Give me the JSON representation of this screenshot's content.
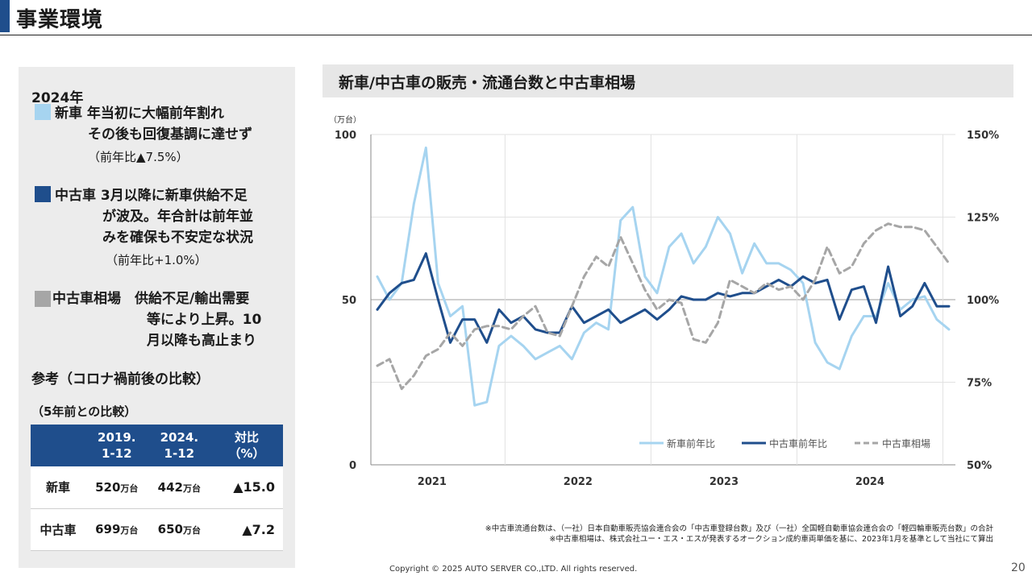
{
  "page": {
    "title": "事業環境",
    "copyright": "Copyright © 2025 AUTO SERVER CO.,LTD.  All rights reserved.",
    "page_number": "20"
  },
  "left_panel": {
    "year": "2024年",
    "new_car": {
      "color": "#a6d4f0",
      "lines": [
        "新車 年当初に大幅前年割れ",
        "その後も回復基調に達せず"
      ],
      "note": "（前年比▲7.5%）"
    },
    "used_car": {
      "color": "#1f4e8c",
      "lines": [
        "中古車 3月以降に新車供給不足",
        "が波及。年合計は前年並",
        "みを確保も不安定な状況"
      ],
      "note": "（前年比+1.0%）"
    },
    "market": {
      "color": "#a6a6a6",
      "lines": [
        "中古車相場　供給不足/輸出需要",
        "等により上昇。10",
        "月以降も高止まり"
      ]
    },
    "reference_title": "参考（コロナ禍前後の比較）",
    "reference_sub": "（5年前との比較）",
    "table": {
      "headers": [
        "",
        "2019.\n1-12",
        "2024.\n1-12",
        "対比\n（%）"
      ],
      "rows": [
        {
          "label": "新車",
          "v2019": "520",
          "v2024": "442",
          "unit": "万台",
          "ratio": "▲15.0"
        },
        {
          "label": "中古車",
          "v2019": "699",
          "v2024": "650",
          "unit": "万台",
          "ratio": "▲7.2"
        }
      ]
    }
  },
  "chart": {
    "header": "新車/中古車の販売・流通台数と中古車相場",
    "notes": [
      "※中古車流通台数は、（一社）日本自動車販売協会連合会の「中古車登録台数」及び（一社）全国軽自動車協会連合会の「軽四輪車販売台数」の合計",
      "※中古車相場は、株式会社ユー・エス・エスが発表するオークション成約車両単価を基に、2023年1月を基準として当社にて算出"
    ]
  },
  "chart_data": {
    "type": "line",
    "left_axis": {
      "unit": "（万台）",
      "ticks": [
        "100",
        "50",
        "0"
      ],
      "range": [
        0,
        100
      ]
    },
    "right_axis": {
      "ticks": [
        "150%",
        "125%",
        "100%",
        "75%",
        "50%"
      ],
      "range": [
        50,
        150
      ]
    },
    "x_labels": [
      "2021",
      "2022",
      "2023",
      "2024"
    ],
    "legend_position": "bottom-right",
    "grid": true,
    "series": [
      {
        "name": "新車前年比",
        "color": "#a6d4f0",
        "dash": "none",
        "axis": "left",
        "values": [
          57,
          50,
          55,
          79,
          96,
          55,
          45,
          48,
          18,
          19,
          36,
          39,
          36,
          32,
          34,
          36,
          32,
          40,
          43,
          41,
          74,
          78,
          57,
          52,
          66,
          70,
          61,
          66,
          75,
          70,
          58,
          67,
          61,
          61,
          59,
          55,
          37,
          31,
          29,
          39,
          45,
          45,
          55,
          47,
          50,
          51,
          44,
          41
        ]
      },
      {
        "name": "中古車前年比",
        "color": "#1f4e8c",
        "dash": "none",
        "axis": "left",
        "values": [
          47,
          52,
          55,
          56,
          64,
          50,
          37,
          44,
          44,
          37,
          47,
          43,
          45,
          41,
          40,
          40,
          48,
          43,
          45,
          47,
          43,
          45,
          47,
          44,
          47,
          51,
          50,
          50,
          52,
          51,
          52,
          52,
          54,
          56,
          54,
          57,
          55,
          56,
          44,
          53,
          54,
          43,
          60,
          45,
          48,
          55,
          48,
          48
        ]
      },
      {
        "name": "中古車相場",
        "color": "#a6a6a6",
        "dash": "8,5",
        "axis": "right",
        "values": [
          80,
          82,
          73,
          77,
          83,
          85,
          90,
          86,
          91,
          92,
          92,
          91,
          95,
          98,
          90,
          89,
          98,
          107,
          113,
          110,
          119,
          111,
          103,
          97,
          100,
          99,
          88,
          87,
          93,
          106,
          104,
          102,
          105,
          103,
          104,
          100,
          106,
          116,
          108,
          110,
          117,
          121,
          123,
          122,
          122,
          121,
          116,
          111
        ]
      }
    ]
  }
}
